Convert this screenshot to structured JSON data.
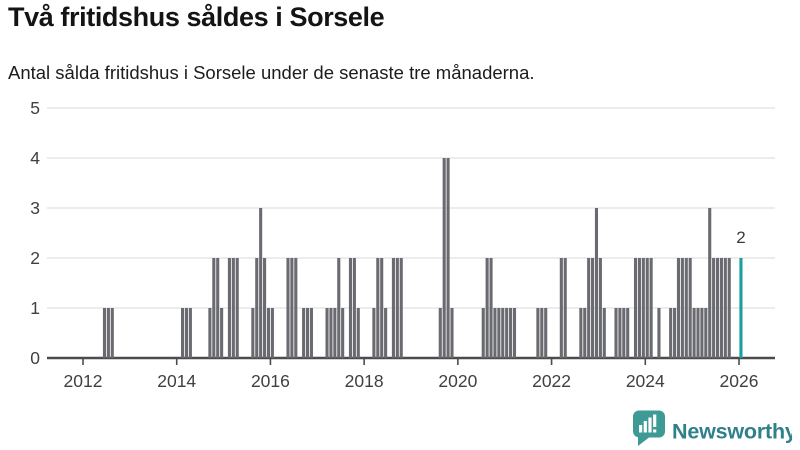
{
  "header": {
    "title": "Två fritidshus såldes i Sorsele",
    "subtitle": "Antal sålda fritidshus i Sorsele under de senaste tre månaderna."
  },
  "chart_data": {
    "type": "bar",
    "unit": "month",
    "title": "Två fritidshus såldes i Sorsele",
    "xlabel": "",
    "ylabel": "",
    "ylim": [
      0,
      5
    ],
    "y_ticks": [
      0,
      1,
      2,
      3,
      4,
      5
    ],
    "x_ticks": [
      "2012",
      "2014",
      "2016",
      "2018",
      "2020",
      "2022",
      "2024",
      "2026"
    ],
    "x_range": [
      "2011-03",
      "2026-10"
    ],
    "grid": true,
    "legend": "none",
    "bar_color": "#6a6a71",
    "highlight_color": "#16a09e",
    "axis_color": "#4c4c4c",
    "grid_color": "#e5e5e5",
    "annotation": {
      "month": "2026-01",
      "text": "2"
    },
    "runs": [
      {
        "start": "2012-06",
        "values": [
          1,
          1,
          1
        ]
      },
      {
        "start": "2014-02",
        "values": [
          1,
          1,
          1
        ]
      },
      {
        "start": "2014-09",
        "values": [
          1,
          2,
          2,
          1
        ]
      },
      {
        "start": "2015-02",
        "values": [
          2,
          2,
          2
        ]
      },
      {
        "start": "2015-08",
        "values": [
          1,
          2,
          3,
          2,
          1,
          1
        ]
      },
      {
        "start": "2016-05",
        "values": [
          2,
          2,
          2
        ]
      },
      {
        "start": "2016-09",
        "values": [
          1,
          1,
          1
        ]
      },
      {
        "start": "2017-03",
        "values": [
          1,
          1,
          1,
          2,
          1
        ]
      },
      {
        "start": "2017-09",
        "values": [
          2,
          2,
          1
        ]
      },
      {
        "start": "2018-03",
        "values": [
          1,
          2,
          2,
          1
        ]
      },
      {
        "start": "2018-08",
        "values": [
          2,
          2,
          2
        ]
      },
      {
        "start": "2019-08",
        "values": [
          1,
          4,
          4,
          1
        ]
      },
      {
        "start": "2020-07",
        "values": [
          1,
          2,
          2,
          1,
          1,
          1,
          1,
          1,
          1
        ]
      },
      {
        "start": "2021-09",
        "values": [
          1,
          1,
          1
        ]
      },
      {
        "start": "2022-03",
        "values": [
          2,
          2
        ]
      },
      {
        "start": "2022-08",
        "values": [
          1,
          1,
          2,
          2,
          3,
          2,
          1
        ]
      },
      {
        "start": "2023-05",
        "values": [
          1,
          1,
          1,
          1
        ]
      },
      {
        "start": "2023-10",
        "values": [
          2,
          2,
          2,
          2,
          2
        ]
      },
      {
        "start": "2024-04",
        "values": [
          1
        ]
      },
      {
        "start": "2024-07",
        "values": [
          1,
          1,
          2,
          2,
          2,
          2,
          1,
          1,
          1,
          1,
          3,
          2,
          2,
          2,
          2,
          2
        ]
      },
      {
        "start": "2026-01",
        "values": [
          2
        ],
        "highlight": true
      }
    ]
  },
  "branding": {
    "logo_text": "Newsworthy",
    "logo_box_color": "#3e9a94",
    "logo_text_color": "#2f808b"
  }
}
